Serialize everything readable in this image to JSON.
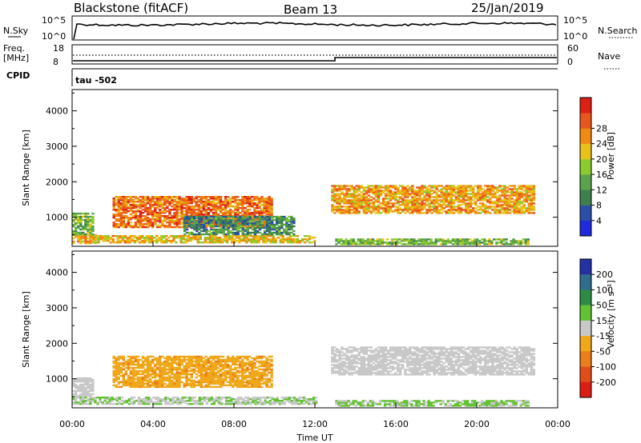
{
  "header": {
    "station": "Blackstone (fitACF)",
    "beam": "Beam 13",
    "date": "25/Jan/2019"
  },
  "panels": {
    "nsky_label": "N.Sky",
    "nsky_ticks": [
      "10^5",
      "10^0"
    ],
    "nsearch_label": "N.Search",
    "freq_label": "Freq.",
    "freq_unit": "[MHz]",
    "freq_ticks": [
      "18",
      "8"
    ],
    "nave_label": "Nave",
    "nave_ticks": [
      "60",
      "0"
    ],
    "cpid_label": "CPID",
    "cpid_value": "tau -502"
  },
  "colors": {
    "power": [
      "#1f2adf",
      "#2b4fa6",
      "#3e7f4e",
      "#5aa24b",
      "#8ccb2f",
      "#e8c21a",
      "#f08a12",
      "#e9561b",
      "#dd1f14"
    ],
    "velocity": [
      "#2331a3",
      "#2f6d8e",
      "#2e8b46",
      "#63c233",
      "#c8c8c8",
      "#f0a81b",
      "#ec7d18",
      "#e24d17",
      "#dd1d14"
    ]
  },
  "chart_data": [
    {
      "type": "heatmap",
      "name": "power",
      "ylabel": "Slant Range [km]",
      "xlabel": "Time UT",
      "ylim": [
        180,
        4600
      ],
      "xlim": [
        0,
        24
      ],
      "yticks": [
        1000,
        2000,
        3000,
        4000
      ],
      "colorbar": {
        "label": "Power [dB]",
        "ticks": [
          4,
          8,
          12,
          16,
          20,
          24,
          28
        ],
        "range": [
          0,
          32
        ]
      },
      "echo_regions": [
        {
          "t": [
            0.0,
            1.2
          ],
          "r": [
            250,
            500
          ],
          "mean": 22
        },
        {
          "t": [
            0.0,
            1.0
          ],
          "r": [
            500,
            1100
          ],
          "mean": 14
        },
        {
          "t": [
            1.0,
            12.0
          ],
          "r": [
            270,
            460
          ],
          "mean": 20
        },
        {
          "t": [
            2.0,
            9.8
          ],
          "r": [
            700,
            1600
          ],
          "mean": 25
        },
        {
          "t": [
            5.5,
            11.0
          ],
          "r": [
            500,
            1000
          ],
          "mean": 10
        },
        {
          "t": [
            12.8,
            22.8
          ],
          "r": [
            1100,
            1900
          ],
          "mean": 22
        },
        {
          "t": [
            13.0,
            22.5
          ],
          "r": [
            220,
            400
          ],
          "mean": 14
        }
      ]
    },
    {
      "type": "heatmap",
      "name": "velocity",
      "ylabel": "Slant Range [km]",
      "xlabel": "Time UT",
      "ylim": [
        180,
        4600
      ],
      "xlim": [
        0,
        24
      ],
      "yticks": [
        1000,
        2000,
        3000,
        4000
      ],
      "xticks": [
        "00:00",
        "04:00",
        "08:00",
        "12:00",
        "16:00",
        "20:00",
        "00:00"
      ],
      "colorbar": {
        "label": "Velocity [m s⁻¹]",
        "ticks": [
          "200",
          "100",
          "50",
          "15",
          "-15",
          "-50",
          "-100",
          "-200"
        ],
        "range": [
          -250,
          250
        ]
      },
      "echo_regions": [
        {
          "t": [
            0.0,
            1.0
          ],
          "r": [
            500,
            1000
          ],
          "mean": 0
        },
        {
          "t": [
            0.0,
            12.0
          ],
          "r": [
            270,
            460
          ],
          "mean": 20
        },
        {
          "t": [
            2.0,
            9.8
          ],
          "r": [
            750,
            1650
          ],
          "mean": -60
        },
        {
          "t": [
            12.8,
            22.8
          ],
          "r": [
            1100,
            1900
          ],
          "mean": 0
        },
        {
          "t": [
            13.0,
            22.5
          ],
          "r": [
            220,
            400
          ],
          "mean": 30
        }
      ]
    }
  ]
}
